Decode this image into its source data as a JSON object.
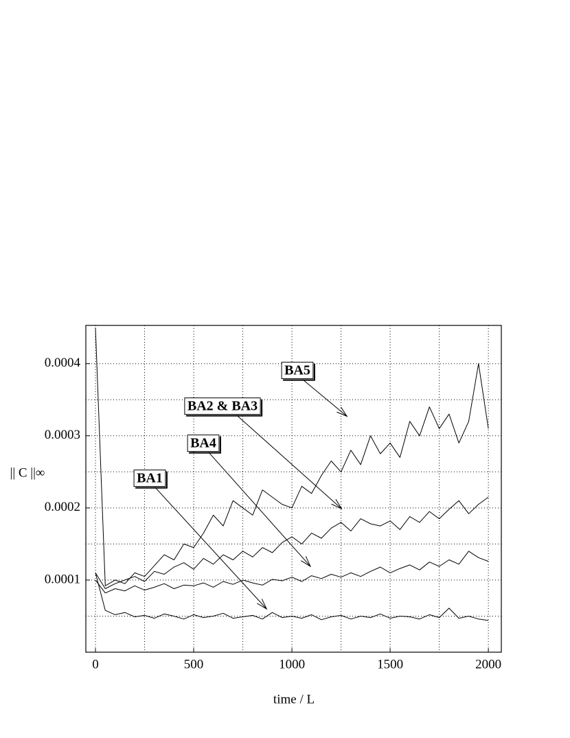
{
  "chart_data": {
    "type": "line",
    "xlabel": "time / L",
    "ylabel": "|| C ||∞",
    "x": [
      0,
      50,
      100,
      150,
      200,
      250,
      300,
      350,
      400,
      450,
      500,
      550,
      600,
      650,
      700,
      750,
      800,
      850,
      900,
      950,
      1000,
      1050,
      1100,
      1150,
      1200,
      1250,
      1300,
      1350,
      1400,
      1450,
      1500,
      1550,
      1600,
      1650,
      1700,
      1750,
      1800,
      1850,
      1900,
      1950,
      2000
    ],
    "series": [
      {
        "name": "BA1",
        "color": "#000000",
        "arrow": [
          871,
          6e-05
        ],
        "values": [
          0.00011,
          5.8e-05,
          5.2e-05,
          5.5e-05,
          4.9e-05,
          5.1e-05,
          4.7e-05,
          5.3e-05,
          5e-05,
          4.6e-05,
          5.2e-05,
          4.8e-05,
          5e-05,
          5.4e-05,
          4.7e-05,
          4.9e-05,
          5.1e-05,
          4.6e-05,
          5.5e-05,
          4.8e-05,
          5e-05,
          4.7e-05,
          5.2e-05,
          4.5e-05,
          4.9e-05,
          5.1e-05,
          4.6e-05,
          5e-05,
          4.8e-05,
          5.3e-05,
          4.7e-05,
          5e-05,
          4.9e-05,
          4.6e-05,
          5.2e-05,
          4.8e-05,
          6.1e-05,
          4.7e-05,
          5e-05,
          4.6e-05,
          4.4e-05
        ]
      },
      {
        "name": "BA4",
        "color": "#000000",
        "arrow": [
          1094,
          0.000119
        ],
        "values": [
          0.0001,
          8.2e-05,
          8.8e-05,
          8.5e-05,
          9.2e-05,
          8.6e-05,
          9e-05,
          9.5e-05,
          8.8e-05,
          9.3e-05,
          9.2e-05,
          9.6e-05,
          9e-05,
          9.8e-05,
          9.4e-05,
          0.0001,
          9.6e-05,
          9.3e-05,
          0.000101,
          9.9e-05,
          0.000104,
          9.8e-05,
          0.000106,
          0.000102,
          0.000108,
          0.000104,
          0.00011,
          0.000105,
          0.000112,
          0.000118,
          0.00011,
          0.000116,
          0.000121,
          0.000114,
          0.000125,
          0.000119,
          0.000128,
          0.000122,
          0.00014,
          0.000131,
          0.000126
        ]
      },
      {
        "name": "BA2 & BA3",
        "color": "#000000",
        "arrow": [
          1252,
          0.000199
        ],
        "values": [
          0.00011,
          8.8e-05,
          9.5e-05,
          0.0001,
          0.000105,
          9.8e-05,
          0.000112,
          0.000108,
          0.000118,
          0.000124,
          0.000115,
          0.00013,
          0.000122,
          0.000135,
          0.000128,
          0.00014,
          0.000132,
          0.000145,
          0.000138,
          0.000152,
          0.00016,
          0.00015,
          0.000165,
          0.000158,
          0.000172,
          0.00018,
          0.000168,
          0.000185,
          0.000178,
          0.000175,
          0.000182,
          0.00017,
          0.000188,
          0.00018,
          0.000195,
          0.000185,
          0.000198,
          0.00021,
          0.000192,
          0.000205,
          0.000215
        ]
      },
      {
        "name": "BA5",
        "color": "#000000",
        "arrow": [
          1280,
          0.000327
        ],
        "values": [
          0.00045,
          9.2e-05,
          0.0001,
          9.5e-05,
          0.00011,
          0.000105,
          0.00012,
          0.000135,
          0.000128,
          0.00015,
          0.000145,
          0.000165,
          0.00019,
          0.000175,
          0.00021,
          0.0002,
          0.00019,
          0.000225,
          0.000215,
          0.000205,
          0.0002,
          0.00023,
          0.00022,
          0.000245,
          0.000265,
          0.00025,
          0.00028,
          0.00026,
          0.0003,
          0.000275,
          0.00029,
          0.00027,
          0.00032,
          0.0003,
          0.00034,
          0.00031,
          0.00033,
          0.00029,
          0.00032,
          0.0004,
          0.00031
        ]
      }
    ],
    "xlim": [
      -49,
      2066
    ],
    "ylim": [
      0,
      0.000453
    ],
    "xticks": [
      0,
      500,
      1000,
      1500,
      2000
    ],
    "xminor": [
      250,
      750,
      1250,
      1750
    ],
    "yticks": [
      0.0001,
      0.0002,
      0.0003,
      0.0004
    ],
    "yminor": [
      5e-05,
      0.00015,
      0.00025,
      0.00035
    ],
    "grid": true
  }
}
